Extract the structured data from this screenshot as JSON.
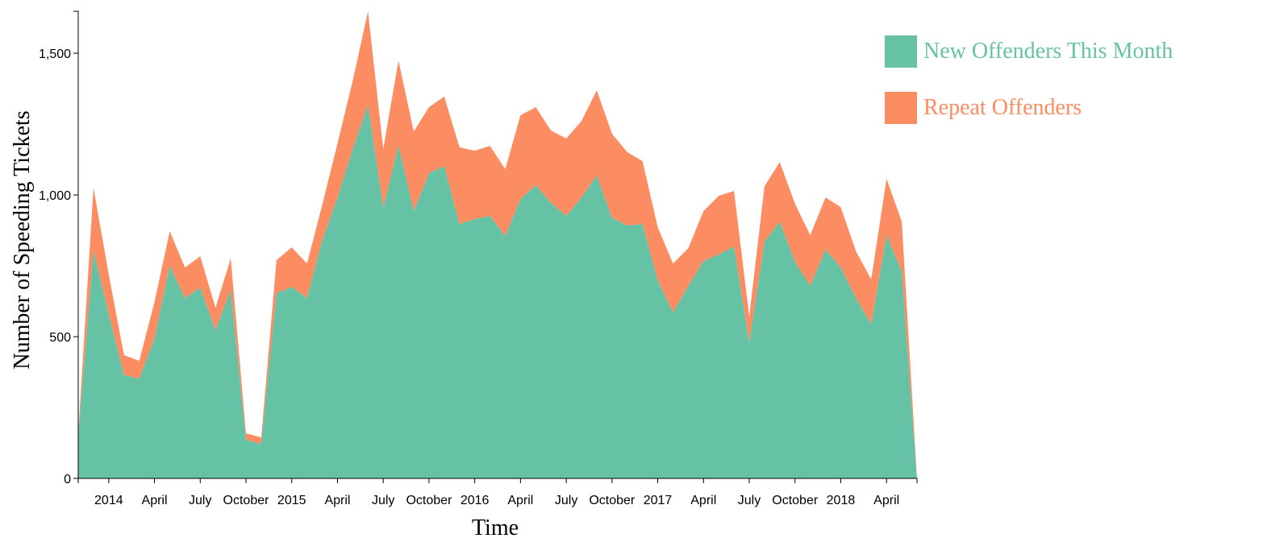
{
  "chart_data": {
    "type": "area",
    "stacked": true,
    "x_label": "Time",
    "y_label": "Number of Speeding Tickets",
    "x": [
      "2013-11",
      "2013-12",
      "2014-01",
      "2014-02",
      "2014-03",
      "2014-04",
      "2014-05",
      "2014-06",
      "2014-07",
      "2014-08",
      "2014-09",
      "2014-10",
      "2014-11",
      "2014-12",
      "2015-01",
      "2015-02",
      "2015-03",
      "2015-04",
      "2015-05",
      "2015-06",
      "2015-07",
      "2015-08",
      "2015-09",
      "2015-10",
      "2015-11",
      "2015-12",
      "2016-01",
      "2016-02",
      "2016-03",
      "2016-04",
      "2016-05",
      "2016-06",
      "2016-07",
      "2016-08",
      "2016-09",
      "2016-10",
      "2016-11",
      "2016-12",
      "2017-01",
      "2017-02",
      "2017-03",
      "2017-04",
      "2017-05",
      "2017-06",
      "2017-07",
      "2017-08",
      "2017-09",
      "2017-10",
      "2017-11",
      "2017-12",
      "2018-01",
      "2018-02",
      "2018-03",
      "2018-04",
      "2018-05",
      "2018-06"
    ],
    "series": [
      {
        "name": "New Offenders This Month",
        "color": "#66c2a5",
        "values": [
          150,
          805,
          580,
          365,
          352,
          494,
          750,
          636,
          673,
          523,
          665,
          136,
          122,
          653,
          676,
          636,
          840,
          991,
          1162,
          1318,
          955,
          1176,
          943,
          1077,
          1102,
          898,
          915,
          926,
          855,
          986,
          1034,
          972,
          926,
          991,
          1068,
          920,
          892,
          898,
          699,
          585,
          679,
          767,
          790,
          818,
          480,
          835,
          906,
          764,
          679,
          807,
          744,
          636,
          545,
          858,
          730,
          0
        ]
      },
      {
        "name": "Repeat Offenders",
        "color": "#fc8d62",
        "values": [
          10,
          220,
          140,
          70,
          63,
          128,
          122,
          108,
          111,
          79,
          111,
          23,
          23,
          117,
          139,
          122,
          125,
          191,
          241,
          330,
          207,
          298,
          281,
          233,
          245,
          270,
          241,
          247,
          236,
          295,
          276,
          255,
          273,
          270,
          301,
          296,
          259,
          221,
          187,
          173,
          133,
          176,
          207,
          196,
          91,
          196,
          210,
          205,
          179,
          184,
          213,
          165,
          157,
          199,
          176,
          0
        ]
      }
    ],
    "xlim": [
      "2013-11",
      "2018-06"
    ],
    "xticks": [
      {
        "value": "2014-01",
        "label": "2014"
      },
      {
        "value": "2014-04",
        "label": "April"
      },
      {
        "value": "2014-07",
        "label": "July"
      },
      {
        "value": "2014-10",
        "label": "October"
      },
      {
        "value": "2015-01",
        "label": "2015"
      },
      {
        "value": "2015-04",
        "label": "April"
      },
      {
        "value": "2015-07",
        "label": "July"
      },
      {
        "value": "2015-10",
        "label": "October"
      },
      {
        "value": "2016-01",
        "label": "2016"
      },
      {
        "value": "2016-04",
        "label": "April"
      },
      {
        "value": "2016-07",
        "label": "July"
      },
      {
        "value": "2016-10",
        "label": "October"
      },
      {
        "value": "2017-01",
        "label": "2017"
      },
      {
        "value": "2017-04",
        "label": "April"
      },
      {
        "value": "2017-07",
        "label": "July"
      },
      {
        "value": "2017-10",
        "label": "October"
      },
      {
        "value": "2018-01",
        "label": "2018"
      },
      {
        "value": "2018-04",
        "label": "April"
      }
    ],
    "ylim": [
      0,
      1648
    ],
    "yticks": [
      0,
      500,
      {
        "value": 1000,
        "label": "1,000"
      },
      {
        "value": 1500,
        "label": "1,500"
      }
    ],
    "legend": "top-right"
  }
}
